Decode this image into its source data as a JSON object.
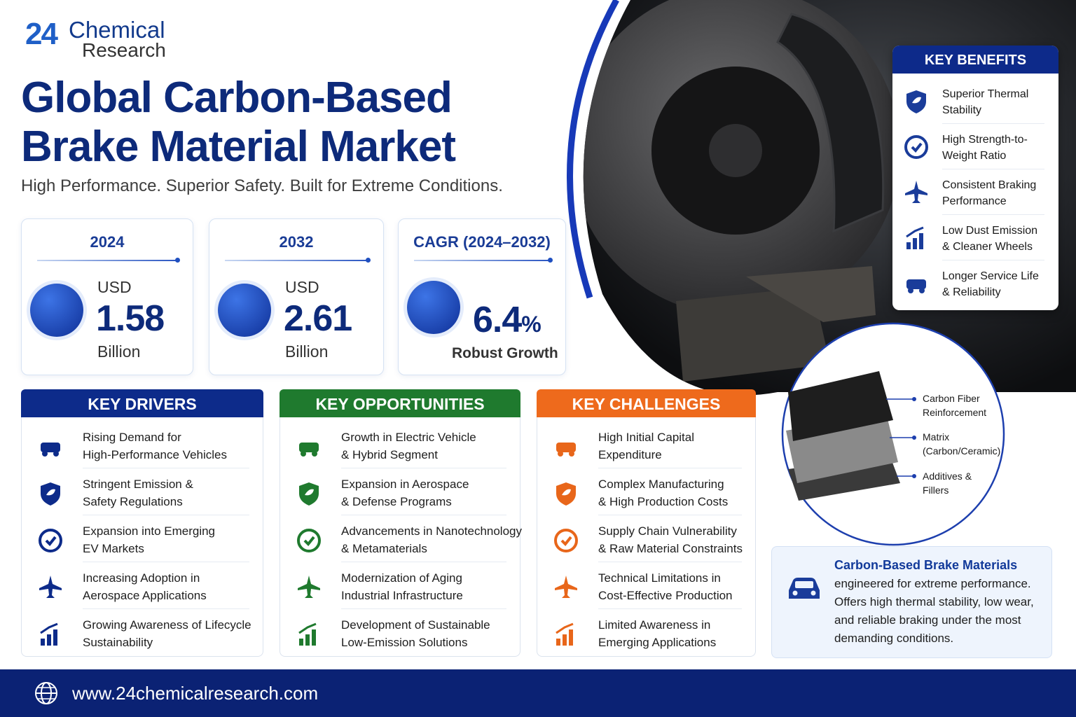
{
  "logo": {
    "number": "24",
    "name": "Chemical",
    "sub": "Research"
  },
  "header": {
    "title_lines": [
      "Global Carbon-Based",
      "Brake Material Market"
    ],
    "tagline": "High Performance. Superior Safety. Built for Extreme Conditions."
  },
  "stats": [
    {
      "label": "2024",
      "unit": "USD",
      "value": 1.58,
      "scale": "Billion"
    },
    {
      "label": "2032",
      "unit": "USD",
      "value": 2.61,
      "scale": "Billion"
    },
    {
      "label": "CAGR (2024–2032)",
      "value": 6.4,
      "suffix": "%",
      "note": "Robust Growth"
    }
  ],
  "key_benefits": {
    "title": "KEY BENEFITS",
    "items": [
      [
        "Superior Thermal",
        "Stability"
      ],
      [
        "High Strength-to-",
        "Weight Ratio"
      ],
      [
        "Consistent Braking",
        "Performance"
      ],
      [
        "Low Dust Emission",
        "& Cleaner Wheels"
      ],
      [
        "Longer Service Life",
        "& Reliability"
      ]
    ]
  },
  "key_drivers": {
    "title": "KEY DRIVERS",
    "items": [
      [
        "Rising Demand for",
        "High-Performance Vehicles"
      ],
      [
        "Stringent Emission &",
        "Safety Regulations"
      ],
      [
        "Expansion into Emerging",
        "EV Markets"
      ],
      [
        "Increasing Adoption in",
        "Aerospace Applications"
      ],
      [
        "Growing Awareness of Lifecycle",
        "Sustainability"
      ]
    ]
  },
  "key_opportunities": {
    "title": "KEY OPPORTUNITIES",
    "items": [
      [
        "Growth in Electric Vehicle",
        "& Hybrid Segment"
      ],
      [
        "Expansion in Aerospace",
        "& Defense Programs"
      ],
      [
        "Advancements in Nanotechnology",
        "& Metamaterials"
      ],
      [
        "Modernization of Aging",
        "Industrial Infrastructure"
      ],
      [
        "Development of Sustainable",
        "Low-Emission Solutions"
      ]
    ]
  },
  "key_challenges": {
    "title": "KEY CHALLENGES",
    "items": [
      [
        "High Initial Capital",
        "Expenditure"
      ],
      [
        "Complex Manufacturing",
        "& High Production Costs"
      ],
      [
        "Supply Chain Vulnerability",
        "& Raw Material Constraints"
      ],
      [
        "Technical Limitations in",
        "Cost-Effective Production"
      ],
      [
        "Limited Awareness in",
        "Emerging Applications"
      ]
    ]
  },
  "layers": [
    [
      "Carbon Fiber",
      "Reinforcement"
    ],
    [
      "Matrix",
      "(Carbon/Ceramic)"
    ],
    [
      "Additives &",
      "Fillers"
    ]
  ],
  "description": {
    "heading": "Carbon-Based Brake Materials",
    "lines": [
      "engineered for extreme performance.",
      "Offers high thermal stability, low wear,",
      "and reliable braking under the most",
      "demanding conditions."
    ]
  },
  "footer": {
    "url": "www.24chemicalresearch.com"
  }
}
